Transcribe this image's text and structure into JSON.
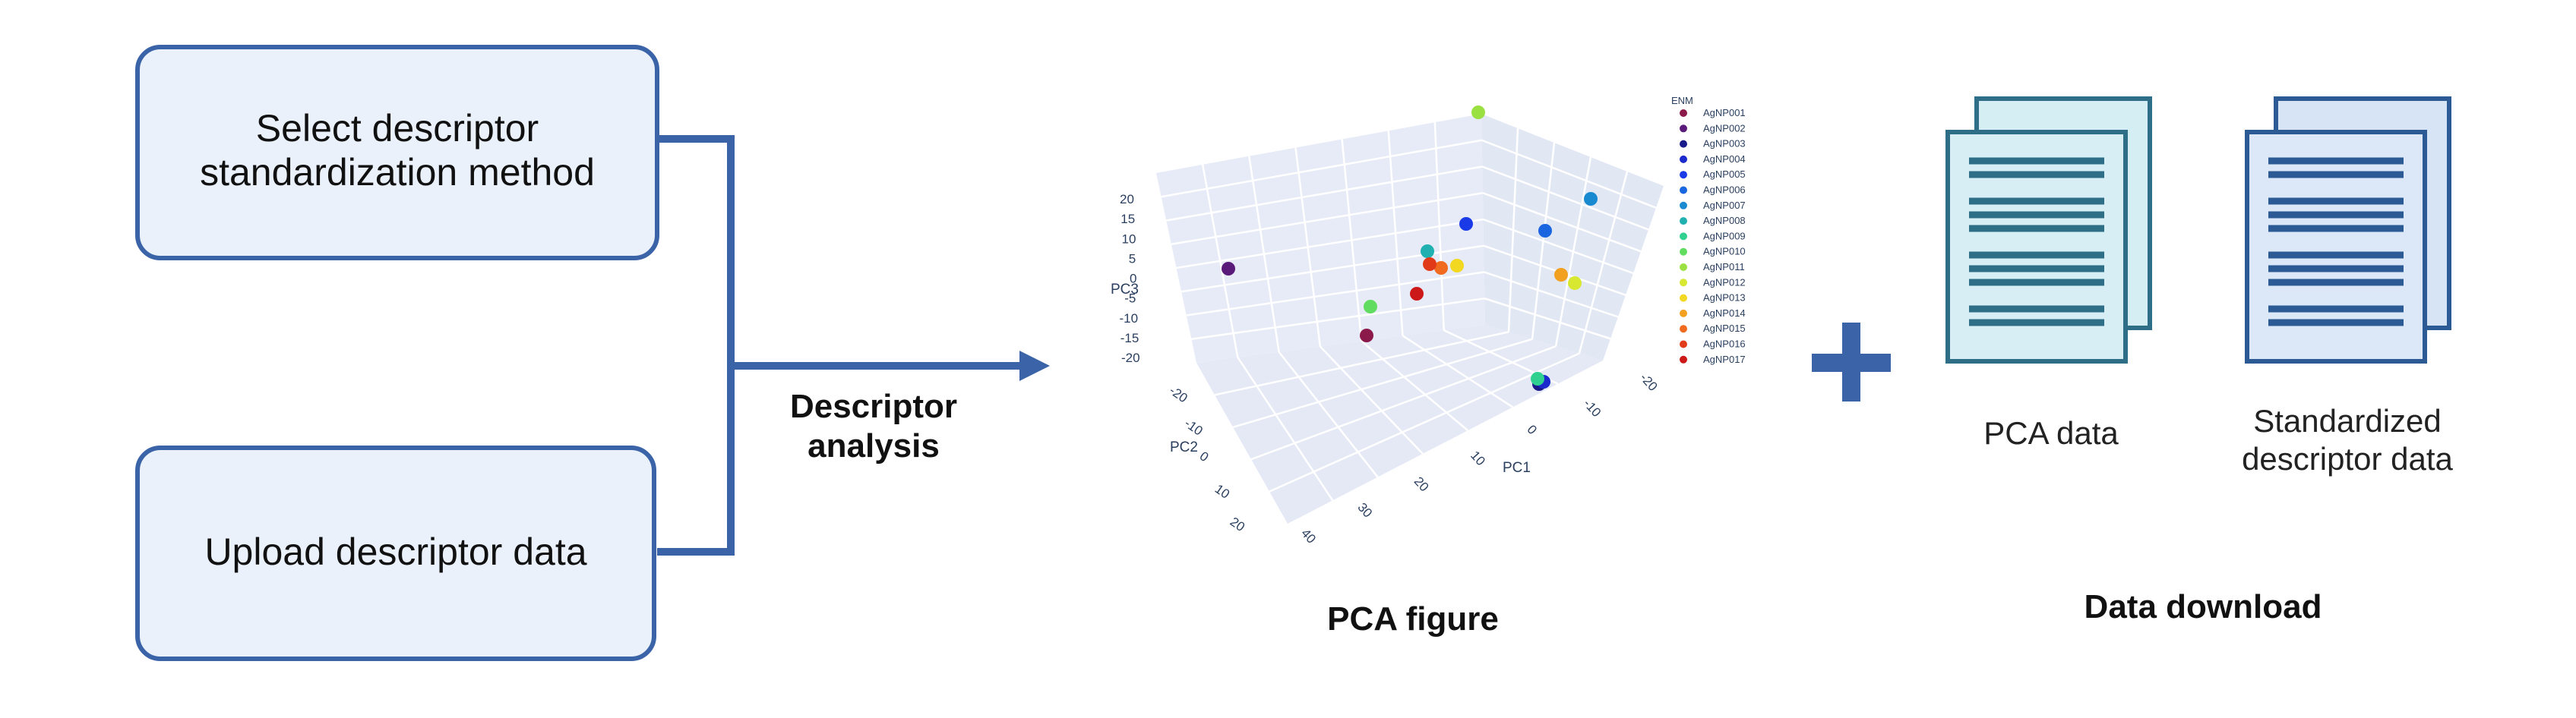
{
  "inputs": {
    "select_method": [
      "Select descriptor",
      "standardization method"
    ],
    "upload_data": "Upload descriptor data"
  },
  "process_label": [
    "Descriptor",
    "analysis"
  ],
  "pca_figure": {
    "caption": "PCA figure",
    "axes": {
      "pc1_label": "PC1",
      "pc2_label": "PC2",
      "pc3_label": "PC3",
      "pc1_ticks": [
        "-20",
        "-10",
        "0",
        "10",
        "20",
        "30",
        "40"
      ],
      "pc2_ticks": [
        "-20",
        "-10",
        "0",
        "10",
        "20"
      ],
      "pc3_ticks": [
        "20",
        "15",
        "10",
        "5",
        "0",
        "-5",
        "-10",
        "-15",
        "-20"
      ]
    },
    "legend": {
      "title": "ENM",
      "entries": [
        {
          "name": "AgNP001",
          "color": "#8b1a4a"
        },
        {
          "name": "AgNP002",
          "color": "#5a1a7a"
        },
        {
          "name": "AgNP003",
          "color": "#1a1a8a"
        },
        {
          "name": "AgNP004",
          "color": "#1a2acc"
        },
        {
          "name": "AgNP005",
          "color": "#1a3ae8"
        },
        {
          "name": "AgNP006",
          "color": "#1a66e0"
        },
        {
          "name": "AgNP007",
          "color": "#1a8ad0"
        },
        {
          "name": "AgNP008",
          "color": "#20b0b0"
        },
        {
          "name": "AgNP009",
          "color": "#30d090"
        },
        {
          "name": "AgNP010",
          "color": "#60dc60"
        },
        {
          "name": "AgNP011",
          "color": "#9ae040"
        },
        {
          "name": "AgNP012",
          "color": "#d8e830"
        },
        {
          "name": "AgNP013",
          "color": "#f2d820"
        },
        {
          "name": "AgNP014",
          "color": "#f2a020"
        },
        {
          "name": "AgNP015",
          "color": "#f06a20"
        },
        {
          "name": "AgNP016",
          "color": "#e03a18"
        },
        {
          "name": "AgNP017",
          "color": "#cc1818"
        }
      ]
    }
  },
  "plus_symbol": "+",
  "downloads": {
    "title": "Data download",
    "pca_data": "PCA data",
    "standardized_data": [
      "Standardized",
      "descriptor data"
    ]
  },
  "colors": {
    "accent": "#3a63a8",
    "box_fill": "#eaf1fb",
    "doc_back": "#d4eef3",
    "doc_front": "#d8eef5",
    "doc_line": "#2e6e86",
    "doc_back2": "#d6e4f5",
    "doc_front2": "#dce8f8",
    "doc_line2": "#2c5a94"
  }
}
